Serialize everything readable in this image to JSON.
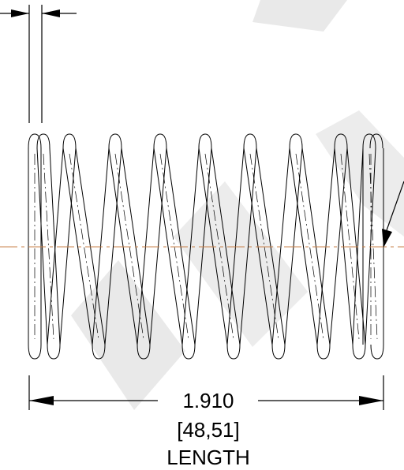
{
  "dimension": {
    "inches": "1.910",
    "millimeters": "[48,51]",
    "label": "LENGTH"
  },
  "colors": {
    "line": "#000000",
    "centerline": "#c8804a",
    "watermark": "#e6e6e6"
  },
  "watermark": {
    "text": "MW"
  }
}
